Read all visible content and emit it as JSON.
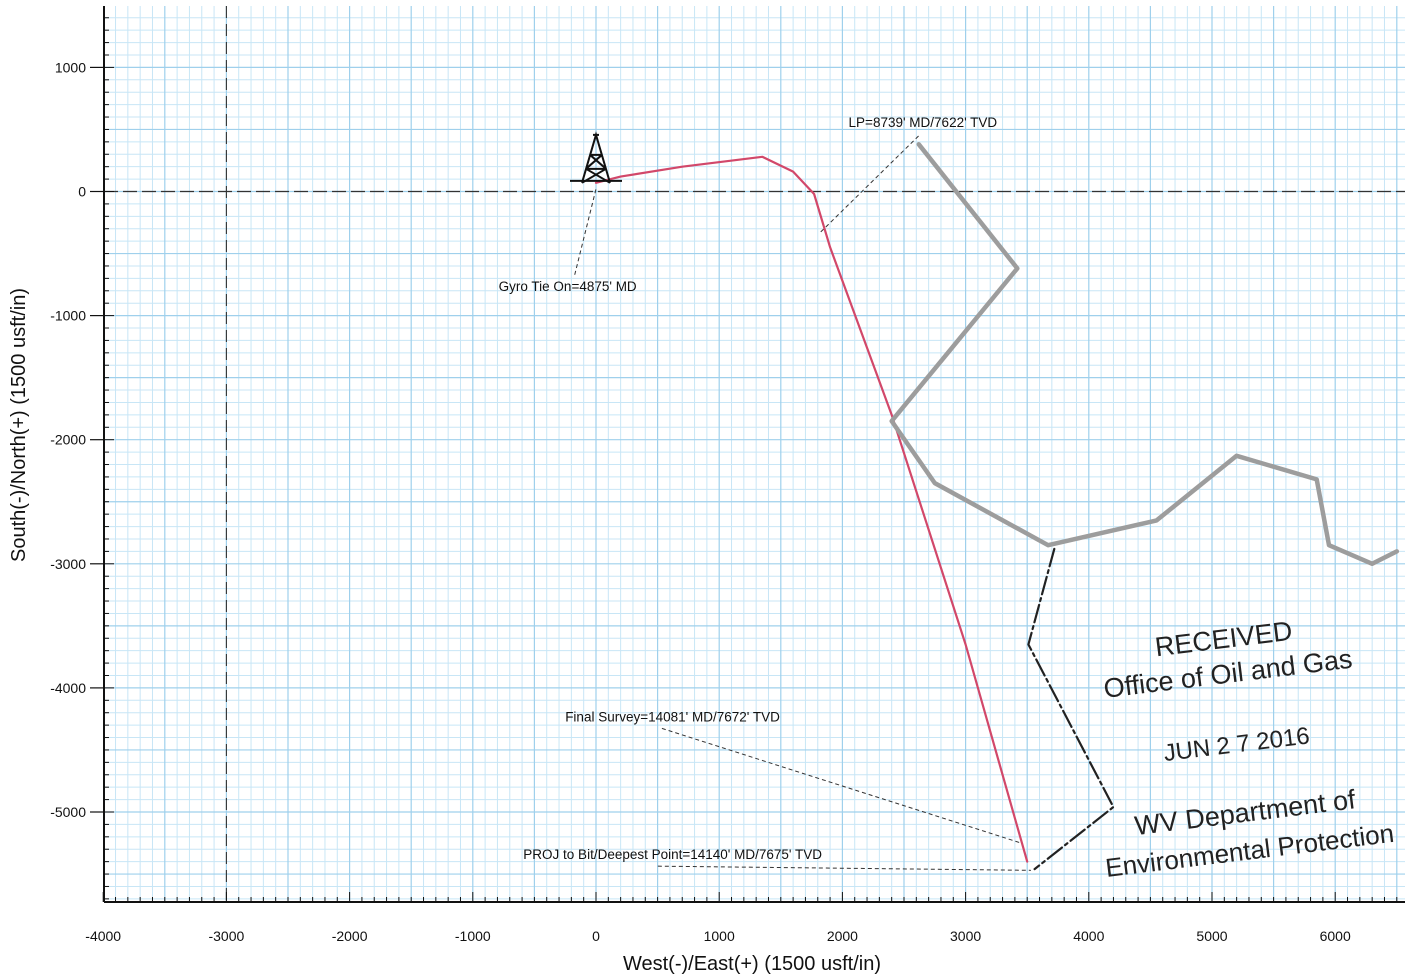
{
  "chart_data": {
    "type": "line",
    "xlabel": "West(-)/East(+) (1500 usft/in)",
    "ylabel": "South(-)/North(+) (1500 usft/in)",
    "xlim": [
      -4000,
      6500
    ],
    "ylim": [
      -5700,
      1450
    ],
    "x_ticks": [
      -4000,
      -3000,
      -2000,
      -1000,
      0,
      1000,
      2000,
      3000,
      4000,
      5000,
      6000
    ],
    "y_ticks": [
      1000,
      0,
      -1000,
      -2000,
      -3000,
      -4000,
      -5000
    ],
    "grid": true,
    "series": [
      {
        "color": "#d2486a",
        "x": [
          0,
          200,
          700,
          1350,
          1600,
          1770,
          1900,
          2400,
          3000,
          3500
        ],
        "y": [
          70,
          120,
          200,
          280,
          160,
          -20,
          -450,
          -1800,
          -3650,
          -5400
        ]
      },
      {
        "color": "#9d9d9d",
        "x": [
          2620,
          3420,
          2400,
          2750,
          3670,
          4550,
          5200,
          5850,
          5950,
          6300,
          6500
        ],
        "y": [
          380,
          -620,
          -1850,
          -2350,
          -2850,
          -2650,
          -2130,
          -2320,
          -2850,
          -3000,
          -2900
        ]
      },
      {
        "color": "#222222",
        "x": [
          3720,
          3510,
          4200,
          3560
        ],
        "y": [
          -2880,
          -3650,
          -4960,
          -5460
        ]
      }
    ],
    "annotations": [
      {
        "text": "LP=8739' MD/7622' TVD",
        "x": 2050,
        "y": 520,
        "point": [
          1820,
          -330
        ]
      },
      {
        "text": "Gyro Tie On=4875' MD",
        "x": -790,
        "y": -800,
        "point": [
          0,
          20
        ]
      },
      {
        "text": "Final Survey=14081' MD/7672' TVD",
        "x": -250,
        "y": -4270,
        "point": [
          3450,
          -5250
        ]
      },
      {
        "text": "PROJ to Bit/Deepest Point=14140' MD/7675' TVD",
        "x": -590,
        "y": -5380,
        "point": [
          3530,
          -5470
        ]
      }
    ]
  },
  "stamp": {
    "lines": [
      "RECEIVED",
      "Office of Oil and Gas",
      "JUN 2 7 2016",
      "WV Department of",
      "Environmental Protection"
    ]
  }
}
